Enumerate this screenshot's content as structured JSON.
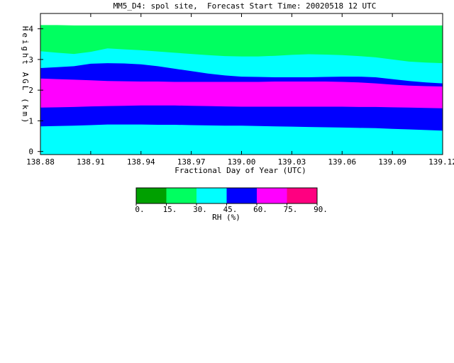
{
  "chart_data": {
    "type": "heatmap",
    "title": "MM5_D4: spol site,  Forecast Start Time: 20020518 12 UTC",
    "xlabel": "Fractional Day of Year (UTC)",
    "ylabel": "Height AGL (km)",
    "xlim": [
      138.88,
      139.12
    ],
    "ylim": [
      -0.1,
      4.5
    ],
    "x_ticks": [
      "138.88",
      "138.91",
      "138.94",
      "138.97",
      "139.00",
      "139.03",
      "139.06",
      "139.09",
      "139.12"
    ],
    "y_ticks": [
      "0",
      "1",
      "2",
      "3",
      "4"
    ],
    "x_boundaries": [
      138.88,
      138.89,
      138.9,
      138.91,
      138.92,
      138.93,
      138.94,
      138.95,
      138.96,
      138.97,
      138.98,
      138.99,
      139.0,
      139.01,
      139.02,
      139.03,
      139.04,
      139.05,
      139.06,
      139.07,
      139.08,
      139.09,
      139.1,
      139.11,
      139.12
    ],
    "layers": [
      {
        "level": "30-45",
        "tops": [
          0.82,
          0.83,
          0.84,
          0.86,
          0.88,
          0.88,
          0.88,
          0.87,
          0.87,
          0.86,
          0.85,
          0.84,
          0.84,
          0.83,
          0.82,
          0.81,
          0.8,
          0.79,
          0.78,
          0.77,
          0.76,
          0.74,
          0.72,
          0.7,
          0.68
        ]
      },
      {
        "level": "45-60",
        "tops": [
          1.43,
          1.44,
          1.45,
          1.47,
          1.48,
          1.49,
          1.5,
          1.5,
          1.5,
          1.49,
          1.48,
          1.47,
          1.46,
          1.46,
          1.46,
          1.46,
          1.46,
          1.46,
          1.46,
          1.45,
          1.45,
          1.44,
          1.43,
          1.42,
          1.41
        ]
      },
      {
        "level": "60-75",
        "tops": [
          2.38,
          2.36,
          2.34,
          2.32,
          2.3,
          2.29,
          2.28,
          2.28,
          2.27,
          2.27,
          2.27,
          2.27,
          2.27,
          2.27,
          2.28,
          2.28,
          2.28,
          2.28,
          2.27,
          2.25,
          2.22,
          2.18,
          2.15,
          2.13,
          2.12
        ]
      },
      {
        "level": "45-60",
        "tops": [
          2.72,
          2.75,
          2.78,
          2.86,
          2.88,
          2.87,
          2.84,
          2.78,
          2.7,
          2.62,
          2.54,
          2.48,
          2.44,
          2.43,
          2.42,
          2.42,
          2.42,
          2.43,
          2.44,
          2.44,
          2.42,
          2.36,
          2.3,
          2.25,
          2.22
        ]
      },
      {
        "level": "30-45",
        "tops": [
          3.27,
          3.22,
          3.18,
          3.25,
          3.36,
          3.33,
          3.3,
          3.26,
          3.22,
          3.18,
          3.14,
          3.11,
          3.1,
          3.1,
          3.12,
          3.15,
          3.17,
          3.16,
          3.14,
          3.11,
          3.07,
          3.0,
          2.93,
          2.9,
          2.88
        ]
      },
      {
        "level": "15-30",
        "tops": [
          4.12,
          4.12,
          4.11,
          4.11,
          4.11,
          4.11,
          4.11,
          4.11,
          4.11,
          4.11,
          4.11,
          4.11,
          4.11,
          4.11,
          4.11,
          4.11,
          4.11,
          4.11,
          4.11,
          4.11,
          4.11,
          4.11,
          4.11,
          4.11,
          4.11
        ]
      }
    ],
    "base_level": "30-45",
    "colorbar": {
      "label": "RH (%)",
      "ticks": [
        "0.",
        "15.",
        "30.",
        "45.",
        "60.",
        "75.",
        "90."
      ],
      "levels": [
        {
          "range": "0-15",
          "color": "#00a000"
        },
        {
          "range": "15-30",
          "color": "#00ff60"
        },
        {
          "range": "30-45",
          "color": "#00ffff"
        },
        {
          "range": "45-60",
          "color": "#0000ff"
        },
        {
          "range": "60-75",
          "color": "#ff00ff"
        },
        {
          "range": "75-90",
          "color": "#ff0080"
        }
      ]
    }
  }
}
